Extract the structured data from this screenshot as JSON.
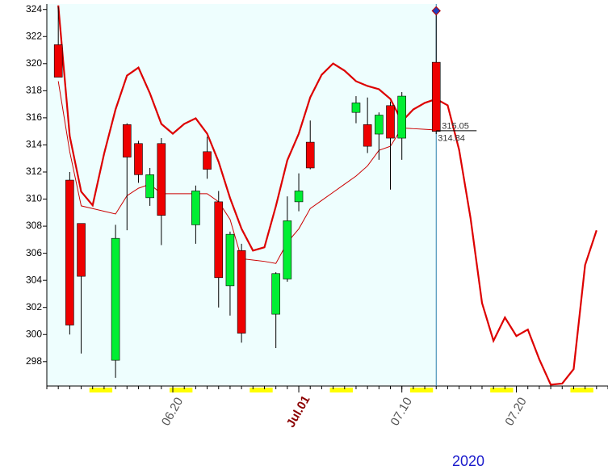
{
  "chart_data": {
    "type": "candlestick",
    "x": [
      "2020-06-10",
      "2020-06-11",
      "2020-06-12",
      "2020-06-15",
      "2020-06-16",
      "2020-06-17",
      "2020-06-18",
      "2020-06-19",
      "2020-06-22",
      "2020-06-23",
      "2020-06-24",
      "2020-06-25",
      "2020-06-26",
      "2020-06-29",
      "2020-06-30",
      "2020-07-01",
      "2020-07-02",
      "2020-07-06",
      "2020-07-07",
      "2020-07-08",
      "2020-07-09",
      "2020-07-10",
      "2020-07-13"
    ],
    "open": [
      321.4,
      311.4,
      308.2,
      298.1,
      315.5,
      314.1,
      310.1,
      314.1,
      308.1,
      313.5,
      309.8,
      303.6,
      306.2,
      301.5,
      304.1,
      309.8,
      314.2,
      316.4,
      315.5,
      314.8,
      316.9,
      314.5,
      320.1
    ],
    "high": [
      324.2,
      312.0,
      308.2,
      308.1,
      315.6,
      314.3,
      312.3,
      314.5,
      311.0,
      314.6,
      310.6,
      307.6,
      306.7,
      304.6,
      310.2,
      311.9,
      315.8,
      317.6,
      317.5,
      316.4,
      317.2,
      317.9,
      323.9
    ],
    "low": [
      319.0,
      300.0,
      298.6,
      296.8,
      307.7,
      311.2,
      309.5,
      306.6,
      306.7,
      311.5,
      302.0,
      301.4,
      299.4,
      299.0,
      303.9,
      309.1,
      312.2,
      315.6,
      313.4,
      312.9,
      310.7,
      312.9,
      314.8
    ],
    "close": [
      319.0,
      300.7,
      304.3,
      307.1,
      313.1,
      311.8,
      311.8,
      308.8,
      310.6,
      312.2,
      304.2,
      307.4,
      300.1,
      304.5,
      308.4,
      310.6,
      312.3,
      317.1,
      313.9,
      316.2,
      314.5,
      317.6,
      315.0
    ],
    "up_color": "#00ee33",
    "down_color": "#ee0000",
    "bands": {
      "x": [
        "2020-06-10",
        "2020-06-11",
        "2020-06-12",
        "2020-06-13",
        "2020-06-14",
        "2020-06-15",
        "2020-06-16",
        "2020-06-17",
        "2020-06-18",
        "2020-06-19",
        "2020-06-20",
        "2020-06-21",
        "2020-06-22",
        "2020-06-23",
        "2020-06-24",
        "2020-06-25",
        "2020-06-26",
        "2020-06-27",
        "2020-06-28",
        "2020-06-29",
        "2020-06-30",
        "2020-07-01",
        "2020-07-02",
        "2020-07-03",
        "2020-07-04",
        "2020-07-05",
        "2020-07-06",
        "2020-07-07",
        "2020-07-08",
        "2020-07-09",
        "2020-07-10",
        "2020-07-11",
        "2020-07-12",
        "2020-07-13",
        "2020-07-14",
        "2020-07-15",
        "2020-07-16",
        "2020-07-17",
        "2020-07-18",
        "2020-07-19",
        "2020-07-20",
        "2020-07-21",
        "2020-07-22",
        "2020-07-23",
        "2020-07-24",
        "2020-07-25",
        "2020-07-26",
        "2020-07-27"
      ],
      "series": [
        {
          "color": "#dd0000",
          "width": 2.2,
          "values": [
            324.3,
            314.65,
            310.55,
            309.54,
            313.35,
            316.62,
            319.12,
            319.71,
            317.81,
            315.55,
            314.83,
            315.55,
            315.96,
            314.83,
            312.75,
            310.07,
            307.81,
            306.2,
            306.44,
            309.48,
            312.87,
            314.83,
            317.51,
            319.18,
            320.01,
            319.48,
            318.7,
            318.35,
            318.11,
            317.39,
            315.73,
            316.62,
            317.1,
            317.39,
            316.92,
            313.64,
            308.58,
            302.33,
            299.54,
            301.26,
            299.89,
            300.37,
            298.17,
            296.3,
            296.38,
            297.45,
            305.13,
            307.69
          ]
        },
        {
          "color": "#cc0000",
          "width": 1,
          "values": [
            318.7,
            313.5,
            309.5,
            309.3,
            309.1,
            308.9,
            310.25,
            310.8,
            311.1,
            310.4,
            310.4,
            310.4,
            310.4,
            310.4,
            309.8,
            308.5,
            305.6,
            305.5,
            305.4,
            305.25,
            306.8,
            307.8,
            309.3,
            309.9,
            310.5,
            311.1,
            311.7,
            312.45,
            313.6,
            313.9,
            315.25,
            315.2,
            315.15,
            315.1,
            null,
            null,
            null,
            null,
            null,
            null,
            null,
            null,
            null,
            null,
            null,
            null,
            null,
            null
          ]
        }
      ]
    },
    "price_labels": [
      315.05,
      314.84
    ],
    "ylim": [
      296.2,
      324.4
    ],
    "yticks": [
      298,
      300,
      302,
      304,
      306,
      308,
      310,
      312,
      314,
      316,
      318,
      320,
      322,
      324
    ],
    "xlim": [
      "2020-06-09",
      "2020-07-28"
    ],
    "xticks": [
      {
        "value": "2020-06-20",
        "label": "06.20"
      },
      {
        "value": "2020-07-01",
        "label": "Jul.01"
      },
      {
        "value": "2020-07-10",
        "label": "07.10"
      },
      {
        "value": "2020-07-20",
        "label": "07.20"
      }
    ],
    "year_label": "2020"
  }
}
